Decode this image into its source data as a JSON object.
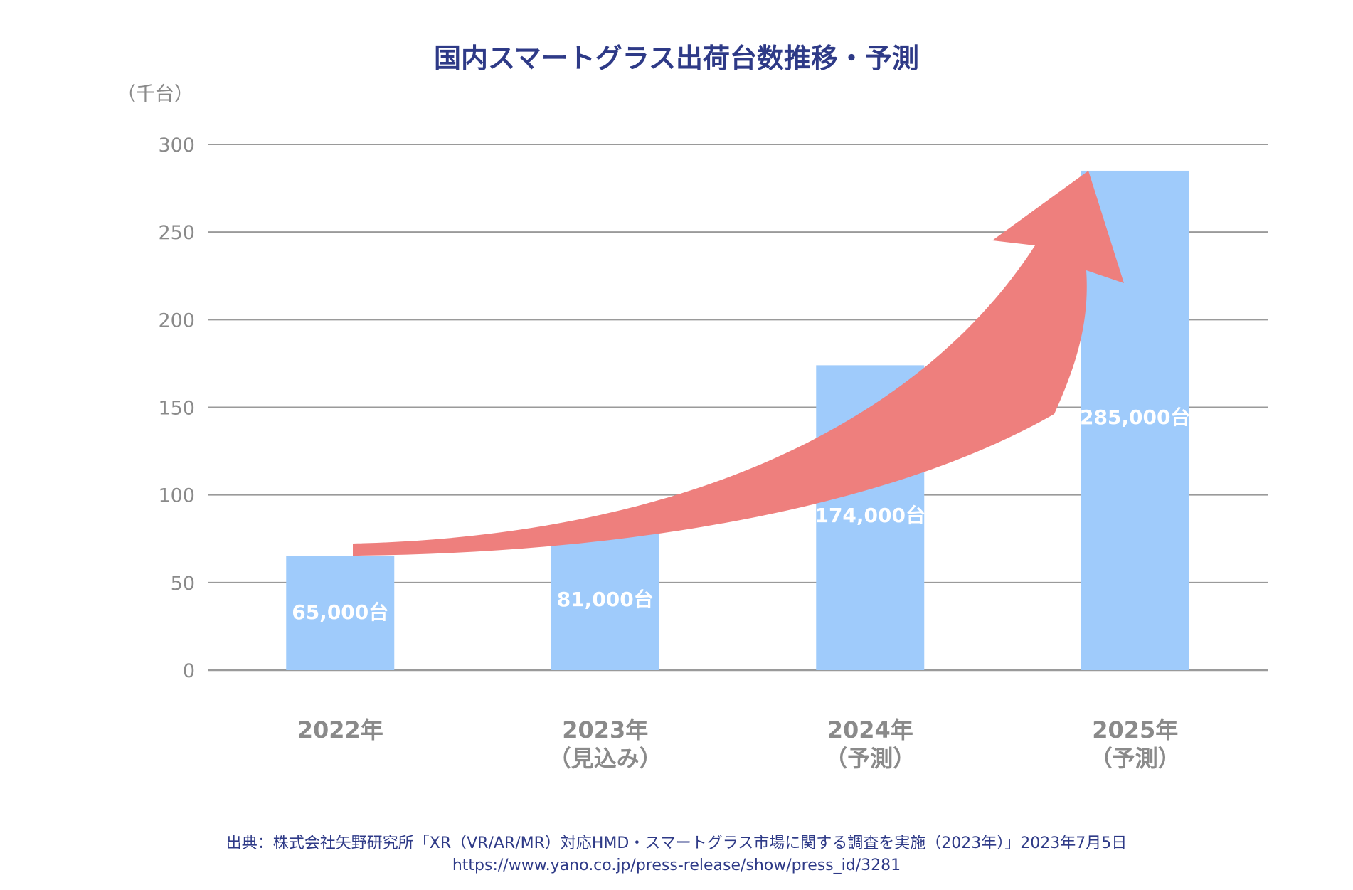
{
  "chart_data": {
    "type": "bar",
    "title": "国内スマートグラス出荷台数推移・予測",
    "unit_label": "（千台）",
    "categories": [
      [
        "2022年"
      ],
      [
        "2023年",
        "（見込み）"
      ],
      [
        "2024年",
        "（予測）"
      ],
      [
        "2025年",
        "（予測）"
      ]
    ],
    "values": [
      65,
      81,
      174,
      285
    ],
    "data_labels": [
      "65,000台",
      "81,000台",
      "174,000台",
      "285,000台"
    ],
    "yticks": [
      0,
      50,
      100,
      150,
      200,
      250,
      300
    ],
    "ylim": [
      0,
      300
    ],
    "grid": true,
    "bar_color": "#9fcbfb",
    "arrow_color": "#ee7f7d",
    "annotation": "trend-arrow"
  },
  "source": {
    "line1": "出典：株式会社矢野研究所「XR（VR/AR/MR）対応HMD・スマートグラス市場に関する調査を実施（2023年）」2023年7月5日",
    "line2": "https://www.yano.co.jp/press-release/show/press_id/3281"
  },
  "colors": {
    "title": "#2e3a87",
    "axis_text": "#8a8a8a",
    "grid": "#9a9a9a"
  }
}
